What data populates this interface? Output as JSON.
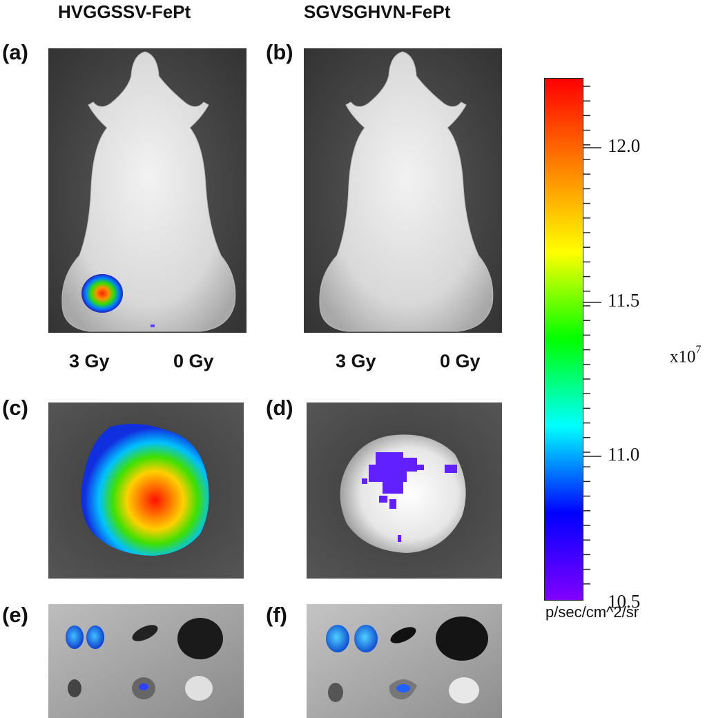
{
  "columns": {
    "left_title": "HVGGSSV-FePt",
    "right_title": "SGVSGHVN-FePt"
  },
  "panels": {
    "a": "(a)",
    "b": "(b)",
    "c": "(c)",
    "d": "(d)",
    "e": "(e)",
    "f": "(f)"
  },
  "doses": {
    "a_left": "3 Gy",
    "a_right": "0 Gy",
    "b_left": "3 Gy",
    "b_right": "0 Gy"
  },
  "colorbar": {
    "ticks": [
      "12.0",
      "11.5",
      "11.0",
      "10.5"
    ],
    "multiplier_base": "x10",
    "multiplier_exp": "7",
    "unit": "p/sec/cm^2/sr",
    "colors": [
      "#ff0000",
      "#ff8000",
      "#ffff00",
      "#00ff00",
      "#00ffff",
      "#0000ff",
      "#8000ff"
    ]
  }
}
